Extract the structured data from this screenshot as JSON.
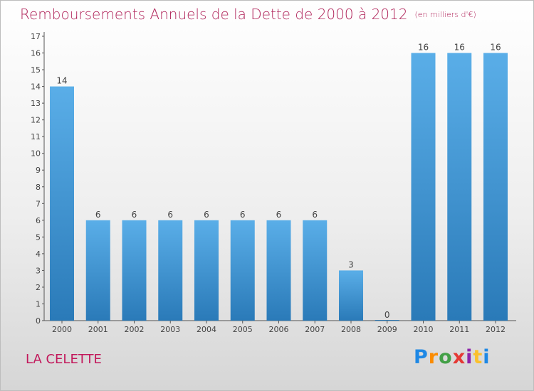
{
  "chart_data": {
    "type": "bar",
    "title": "Remboursements Annuels de la Dette de 2000 à 2012",
    "subtitle": "(en milliers d'€)",
    "categories": [
      "2000",
      "2001",
      "2002",
      "2003",
      "2004",
      "2005",
      "2006",
      "2007",
      "2008",
      "2009",
      "2010",
      "2011",
      "2012"
    ],
    "values": [
      14,
      6,
      6,
      6,
      6,
      6,
      6,
      6,
      3,
      0,
      16,
      16,
      16
    ],
    "ylim": [
      0,
      17
    ],
    "yticks": [
      "0",
      "1",
      "2",
      "3",
      "4",
      "5",
      "6",
      "7",
      "8",
      "9",
      "10",
      "11",
      "12",
      "13",
      "14",
      "15",
      "16",
      "17"
    ],
    "grid": false,
    "bar_color_top": "#5aaee8",
    "bar_color_bottom": "#2a7ab8"
  },
  "footer": {
    "commune": "LA CELETTE",
    "logo_letters": [
      "P",
      "r",
      "o",
      "x",
      "i",
      "t",
      "i"
    ]
  }
}
